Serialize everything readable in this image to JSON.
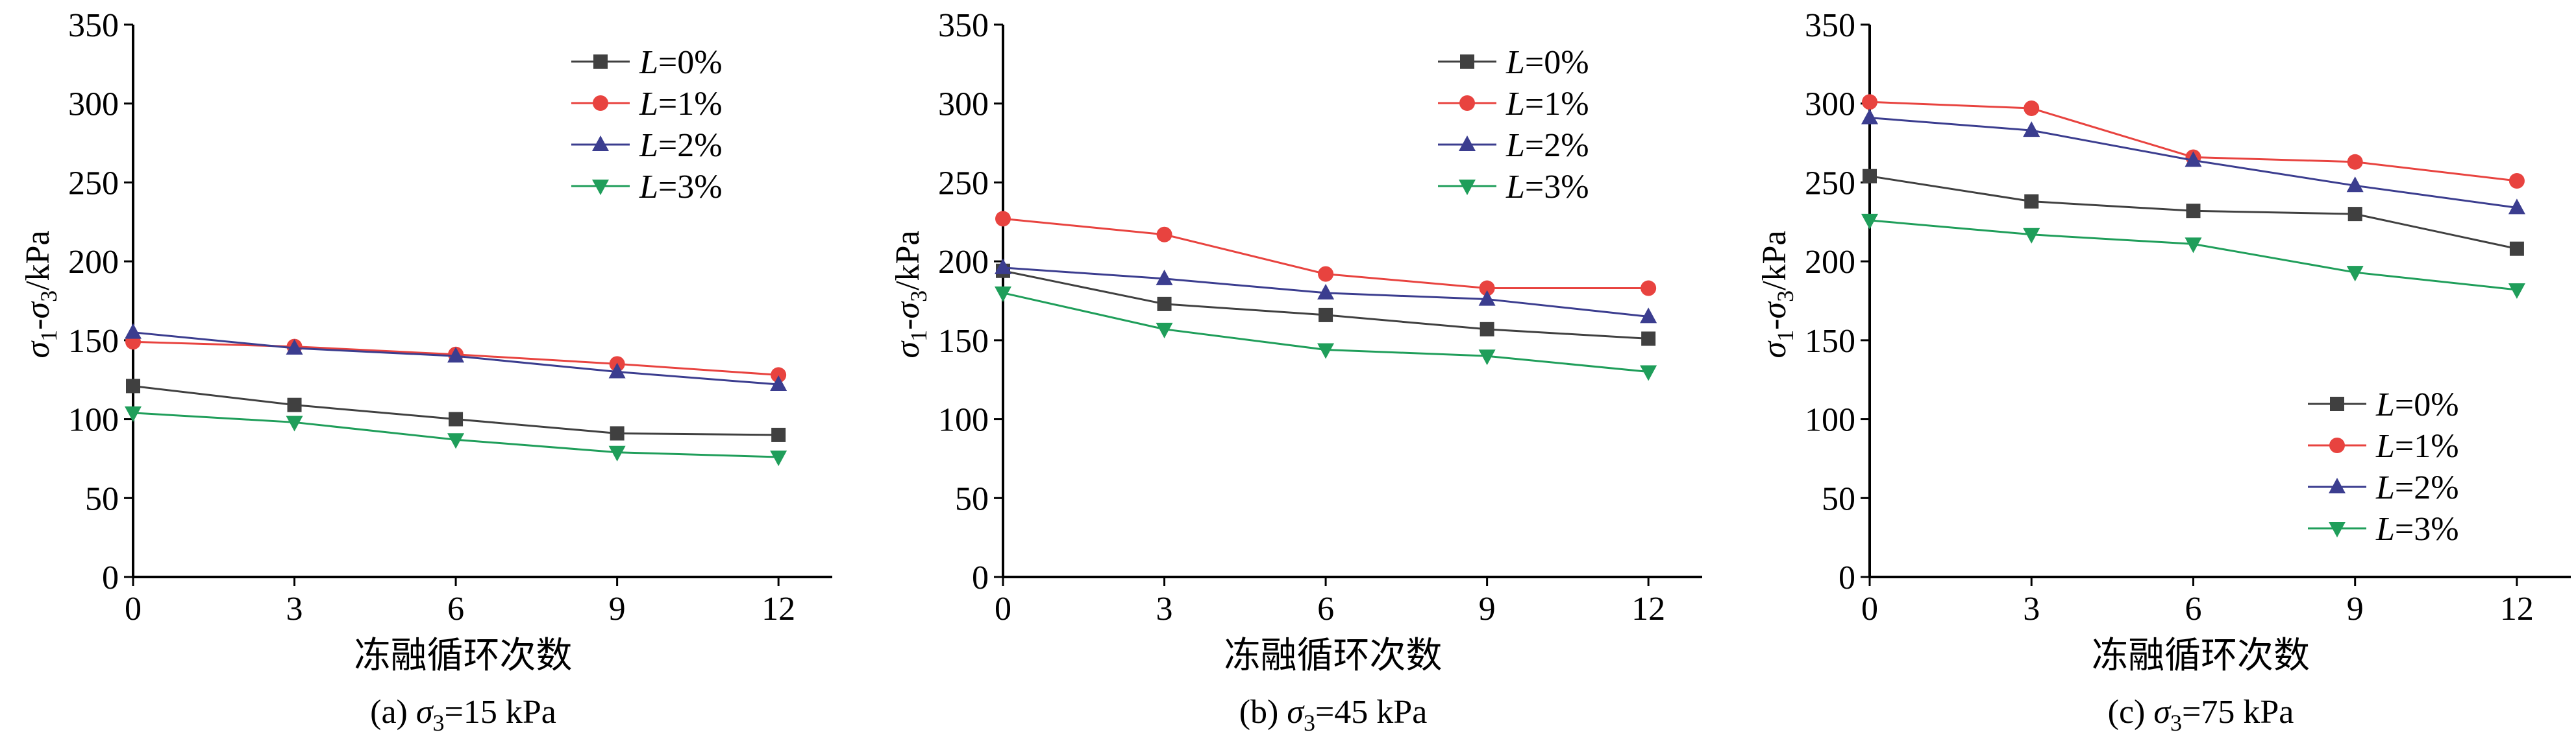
{
  "figure": {
    "colors": {
      "axis": "#000000"
    }
  },
  "chart_data": [
    {
      "type": "line",
      "caption": "(a) σ3=15 kPa",
      "caption_parts": {
        "prefix": "(a) ",
        "symbol": "σ",
        "sub": "3",
        "suffix": "=15 kPa"
      },
      "xlabel": "冻融循环次数",
      "ylabel": "σ1-σ3/kPa",
      "ylabel_parts": {
        "s1": "σ",
        "sub1": "1",
        "mid": "-",
        "s2": "σ",
        "sub2": "3",
        "unit": "/kPa"
      },
      "x": [
        0,
        3,
        6,
        9,
        12
      ],
      "xlim": [
        0,
        13
      ],
      "ylim": [
        0,
        350
      ],
      "xticks": [
        "0",
        "3",
        "6",
        "9",
        "12"
      ],
      "yticks": [
        "0",
        "50",
        "100",
        "150",
        "200",
        "250",
        "300",
        "350"
      ],
      "legend_position": "top-right",
      "series": [
        {
          "name": "L=0%",
          "name_parts": {
            "var": "L",
            "rest": "=0%"
          },
          "marker": "square",
          "color": "#404040",
          "values": [
            121,
            109,
            100,
            91,
            90
          ]
        },
        {
          "name": "L=1%",
          "name_parts": {
            "var": "L",
            "rest": "=1%"
          },
          "marker": "circle",
          "color": "#e8433f",
          "values": [
            149,
            146,
            141,
            135,
            128
          ]
        },
        {
          "name": "L=2%",
          "name_parts": {
            "var": "L",
            "rest": "=2%"
          },
          "marker": "triangle-up",
          "color": "#3b3d8f",
          "values": [
            155,
            145,
            140,
            130,
            122
          ]
        },
        {
          "name": "L=3%",
          "name_parts": {
            "var": "L",
            "rest": "=3%"
          },
          "marker": "triangle-down",
          "color": "#1f9e5a",
          "values": [
            104,
            98,
            87,
            79,
            76
          ]
        }
      ]
    },
    {
      "type": "line",
      "caption": "(b) σ3=45 kPa",
      "caption_parts": {
        "prefix": "(b) ",
        "symbol": "σ",
        "sub": "3",
        "suffix": "=45 kPa"
      },
      "xlabel": "冻融循环次数",
      "ylabel": "σ1-σ3/kPa",
      "ylabel_parts": {
        "s1": "σ",
        "sub1": "1",
        "mid": "-",
        "s2": "σ",
        "sub2": "3",
        "unit": "/kPa"
      },
      "x": [
        0,
        3,
        6,
        9,
        12
      ],
      "xlim": [
        0,
        13
      ],
      "ylim": [
        0,
        350
      ],
      "xticks": [
        "0",
        "3",
        "6",
        "9",
        "12"
      ],
      "yticks": [
        "0",
        "50",
        "100",
        "150",
        "200",
        "250",
        "300",
        "350"
      ],
      "legend_position": "top-right",
      "series": [
        {
          "name": "L=0%",
          "name_parts": {
            "var": "L",
            "rest": "=0%"
          },
          "marker": "square",
          "color": "#404040",
          "values": [
            194,
            173,
            166,
            157,
            151
          ]
        },
        {
          "name": "L=1%",
          "name_parts": {
            "var": "L",
            "rest": "=1%"
          },
          "marker": "circle",
          "color": "#e8433f",
          "values": [
            227,
            217,
            192,
            183,
            183
          ]
        },
        {
          "name": "L=2%",
          "name_parts": {
            "var": "L",
            "rest": "=2%"
          },
          "marker": "triangle-up",
          "color": "#3b3d8f",
          "values": [
            196,
            189,
            180,
            176,
            165
          ]
        },
        {
          "name": "L=3%",
          "name_parts": {
            "var": "L",
            "rest": "=3%"
          },
          "marker": "triangle-down",
          "color": "#1f9e5a",
          "values": [
            180,
            157,
            144,
            140,
            130
          ]
        }
      ]
    },
    {
      "type": "line",
      "caption": "(c) σ3=75 kPa",
      "caption_parts": {
        "prefix": "(c) ",
        "symbol": "σ",
        "sub": "3",
        "suffix": "=75 kPa"
      },
      "xlabel": "冻融循环次数",
      "ylabel": "σ1-σ3/kPa",
      "ylabel_parts": {
        "s1": "σ",
        "sub1": "1",
        "mid": "-",
        "s2": "σ",
        "sub2": "3",
        "unit": "/kPa"
      },
      "x": [
        0,
        3,
        6,
        9,
        12
      ],
      "xlim": [
        0,
        13
      ],
      "ylim": [
        0,
        350
      ],
      "xticks": [
        "0",
        "3",
        "6",
        "9",
        "12"
      ],
      "yticks": [
        "0",
        "50",
        "100",
        "150",
        "200",
        "250",
        "300",
        "350"
      ],
      "legend_position": "bottom-right",
      "series": [
        {
          "name": "L=0%",
          "name_parts": {
            "var": "L",
            "rest": "=0%"
          },
          "marker": "square",
          "color": "#404040",
          "values": [
            254,
            238,
            232,
            230,
            208
          ]
        },
        {
          "name": "L=1%",
          "name_parts": {
            "var": "L",
            "rest": "=1%"
          },
          "marker": "circle",
          "color": "#e8433f",
          "values": [
            301,
            297,
            266,
            263,
            251
          ]
        },
        {
          "name": "L=2%",
          "name_parts": {
            "var": "L",
            "rest": "=2%"
          },
          "marker": "triangle-up",
          "color": "#3b3d8f",
          "values": [
            291,
            283,
            264,
            248,
            234
          ]
        },
        {
          "name": "L=3%",
          "name_parts": {
            "var": "L",
            "rest": "=3%"
          },
          "marker": "triangle-down",
          "color": "#1f9e5a",
          "values": [
            226,
            217,
            211,
            193,
            182
          ]
        }
      ]
    }
  ]
}
